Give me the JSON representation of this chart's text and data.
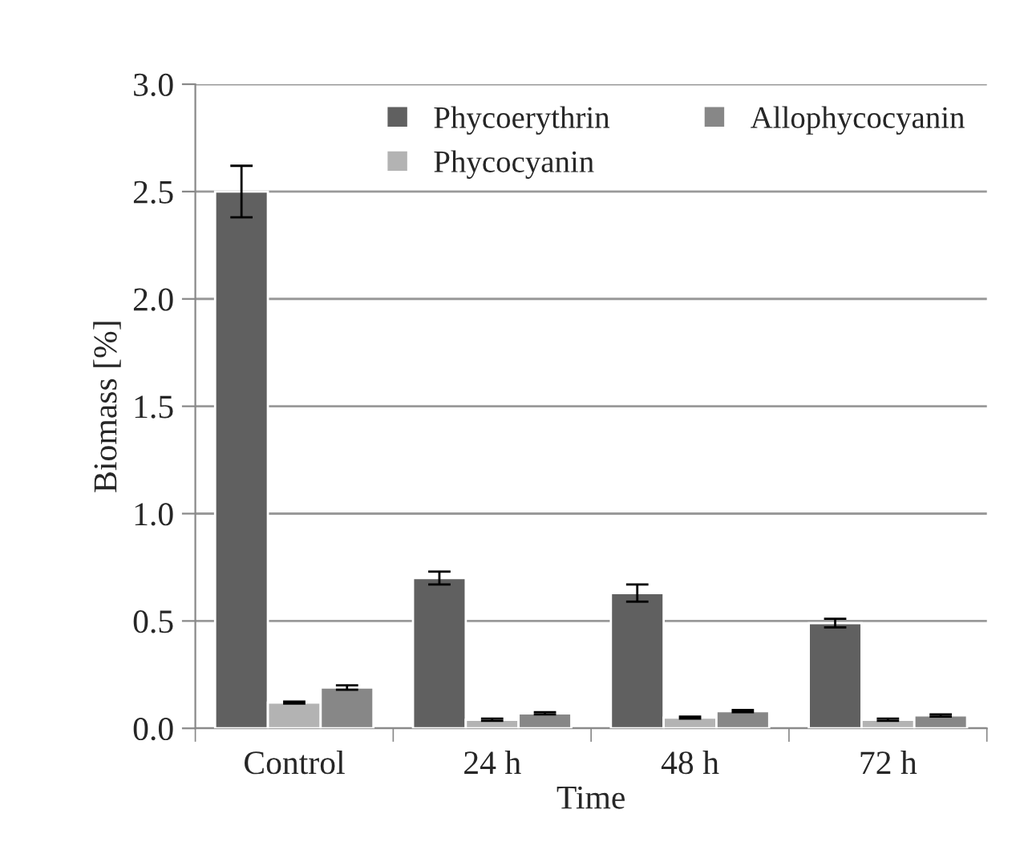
{
  "chart_data": {
    "type": "bar",
    "xlabel": "Time",
    "ylabel": "Biomass [%]",
    "categories": [
      "Control",
      "24 h",
      "48 h",
      "72 h"
    ],
    "series": [
      {
        "name": "Phycoerythrin",
        "color": "#606060",
        "values": [
          2.5,
          0.7,
          0.63,
          0.49
        ],
        "errors": [
          0.12,
          0.03,
          0.04,
          0.02
        ]
      },
      {
        "name": "Phycocyanin",
        "color": "#b3b3b3",
        "values": [
          0.12,
          0.04,
          0.05,
          0.04
        ],
        "errors": [
          0.005,
          0.005,
          0.005,
          0.005
        ]
      },
      {
        "name": "Allophycocyanin",
        "color": "#878787",
        "values": [
          0.19,
          0.07,
          0.08,
          0.06
        ],
        "errors": [
          0.01,
          0.005,
          0.005,
          0.005
        ]
      }
    ],
    "ylim": [
      0,
      3
    ],
    "yticks": [
      {
        "value": 0,
        "label": "0.0"
      },
      {
        "value": 0.5,
        "label": "0.5"
      },
      {
        "value": 1,
        "label": "1.0"
      },
      {
        "value": 1.5,
        "label": "1.5"
      },
      {
        "value": 2,
        "label": "2.0"
      },
      {
        "value": 2.5,
        "label": "2.5"
      },
      {
        "value": 3,
        "label": "3.0"
      }
    ],
    "grid": "y",
    "legend": "top right"
  }
}
